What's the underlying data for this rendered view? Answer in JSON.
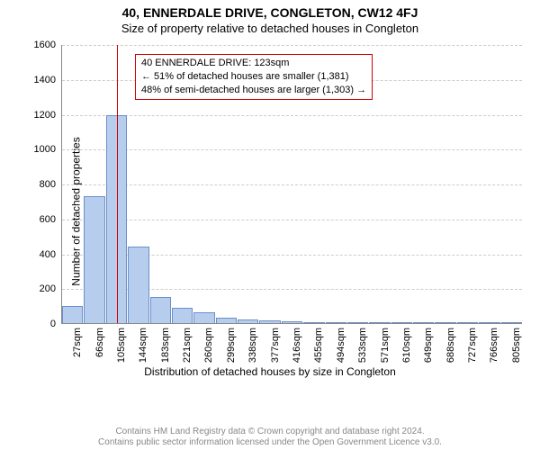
{
  "title": "40, ENNERDALE DRIVE, CONGLETON, CW12 4FJ",
  "subtitle": "Size of property relative to detached houses in Congleton",
  "ylabel": "Number of detached properties",
  "xlabel": "Distribution of detached houses by size in Congleton",
  "chart": {
    "type": "histogram",
    "bar_color": "#b7cdee",
    "bar_border": "#6a8fc9",
    "grid_color": "#cccccc",
    "ref_color": "#cc0000",
    "background": "#ffffff",
    "ylim": [
      0,
      1600
    ],
    "yticks": [
      0,
      200,
      400,
      600,
      800,
      1000,
      1200,
      1400,
      1600
    ],
    "xtick_labels": [
      "27sqm",
      "66sqm",
      "105sqm",
      "144sqm",
      "183sqm",
      "221sqm",
      "260sqm",
      "299sqm",
      "338sqm",
      "377sqm",
      "416sqm",
      "455sqm",
      "494sqm",
      "533sqm",
      "571sqm",
      "610sqm",
      "649sqm",
      "688sqm",
      "727sqm",
      "766sqm",
      "805sqm"
    ],
    "ref_x_index": 2.5,
    "values": [
      100,
      730,
      1190,
      440,
      150,
      90,
      60,
      32,
      22,
      15,
      10,
      6,
      5,
      3,
      2,
      2,
      2,
      1,
      1,
      1,
      1
    ]
  },
  "callout": {
    "line1": "40 ENNERDALE DRIVE: 123sqm",
    "line2": "← 51% of detached houses are smaller (1,381)",
    "line3": "48% of semi-detached houses are larger (1,303) →"
  },
  "footer": {
    "line1": "Contains HM Land Registry data © Crown copyright and database right 2024.",
    "line2": "Contains public sector information licensed under the Open Government Licence v3.0."
  }
}
